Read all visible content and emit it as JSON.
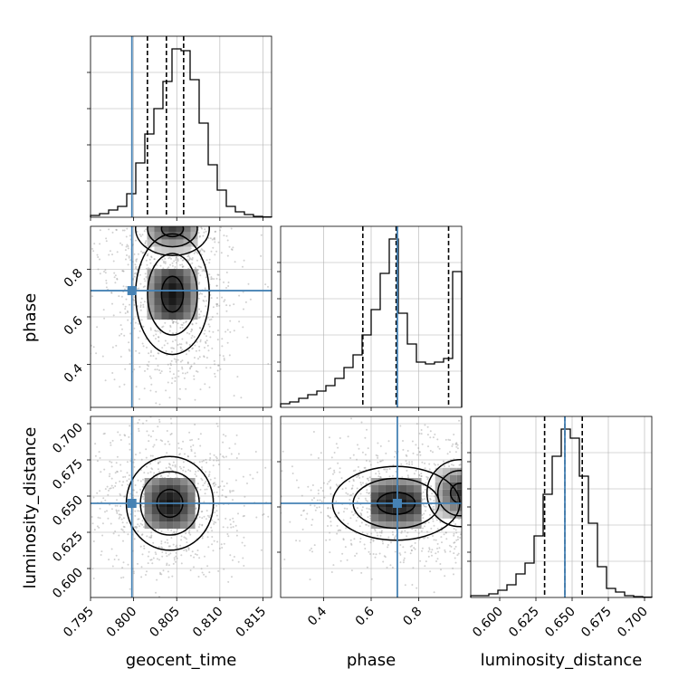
{
  "figure": {
    "truth_color": "#4682b4",
    "hist_color": "#000000",
    "grid_color": "#b0b0b0",
    "sample_color": "#9a9a9a"
  },
  "chart_data": {
    "type": "corner",
    "parameters": [
      "geocent_time",
      "phase",
      "luminosity_distance"
    ],
    "truths": {
      "geocent_time": 0.7998,
      "phase": 0.71,
      "luminosity_distance": 0.645
    },
    "ranges": {
      "geocent_time": [
        0.795,
        0.816
      ],
      "phase": [
        0.22,
        0.98
      ],
      "luminosity_distance": [
        0.58,
        0.705
      ]
    },
    "ticks": {
      "geocent_time": [
        "0.795",
        "0.800",
        "0.805",
        "0.810",
        "0.815"
      ],
      "phase": [
        "0.4",
        "0.6",
        "0.8"
      ],
      "luminosity_distance": [
        "0.600",
        "0.625",
        "0.650",
        "0.675",
        "0.700"
      ]
    },
    "histograms": {
      "geocent_time": {
        "edges": [
          0.795,
          0.816
        ],
        "counts": [
          0.01,
          0.02,
          0.04,
          0.06,
          0.13,
          0.3,
          0.46,
          0.6,
          0.75,
          0.93,
          0.92,
          0.76,
          0.52,
          0.29,
          0.15,
          0.06,
          0.03,
          0.015,
          0.005,
          0.002
        ],
        "quantiles": [
          0.8016,
          0.8038,
          0.8058
        ]
      },
      "phase": {
        "edges": [
          0.22,
          0.98
        ],
        "counts": [
          0.02,
          0.03,
          0.05,
          0.07,
          0.09,
          0.12,
          0.16,
          0.22,
          0.29,
          0.4,
          0.54,
          0.74,
          0.93,
          0.52,
          0.35,
          0.25,
          0.24,
          0.25,
          0.27,
          0.75
        ],
        "quantiles": [
          0.565,
          0.705,
          0.925
        ]
      },
      "luminosity_distance": {
        "edges": [
          0.58,
          0.705
        ],
        "counts": [
          0.01,
          0.01,
          0.02,
          0.04,
          0.07,
          0.13,
          0.19,
          0.34,
          0.57,
          0.78,
          0.93,
          0.88,
          0.67,
          0.41,
          0.17,
          0.05,
          0.03,
          0.01,
          0.005,
          0.002
        ],
        "quantiles": [
          0.631,
          0.645,
          0.657
        ]
      }
    },
    "density_2d": {
      "phase_vs_geocent_time": {
        "mode_x": 0.8045,
        "mode_y": 0.695,
        "secondary_mode": [
          0.8045,
          0.97
        ],
        "contour_levels": [
          "39.3%",
          "86.5%",
          "98.9%"
        ]
      },
      "luminosity_distance_vs_geocent_time": {
        "mode_x": 0.8042,
        "mode_y": 0.645,
        "contour_levels": [
          "39.3%",
          "86.5%",
          "98.9%"
        ]
      },
      "luminosity_distance_vs_phase": {
        "modes": [
          [
            0.705,
            0.645
          ],
          [
            0.975,
            0.652
          ]
        ],
        "contour_levels": [
          "39.3%",
          "86.5%",
          "98.9%"
        ]
      }
    },
    "grid": true
  }
}
